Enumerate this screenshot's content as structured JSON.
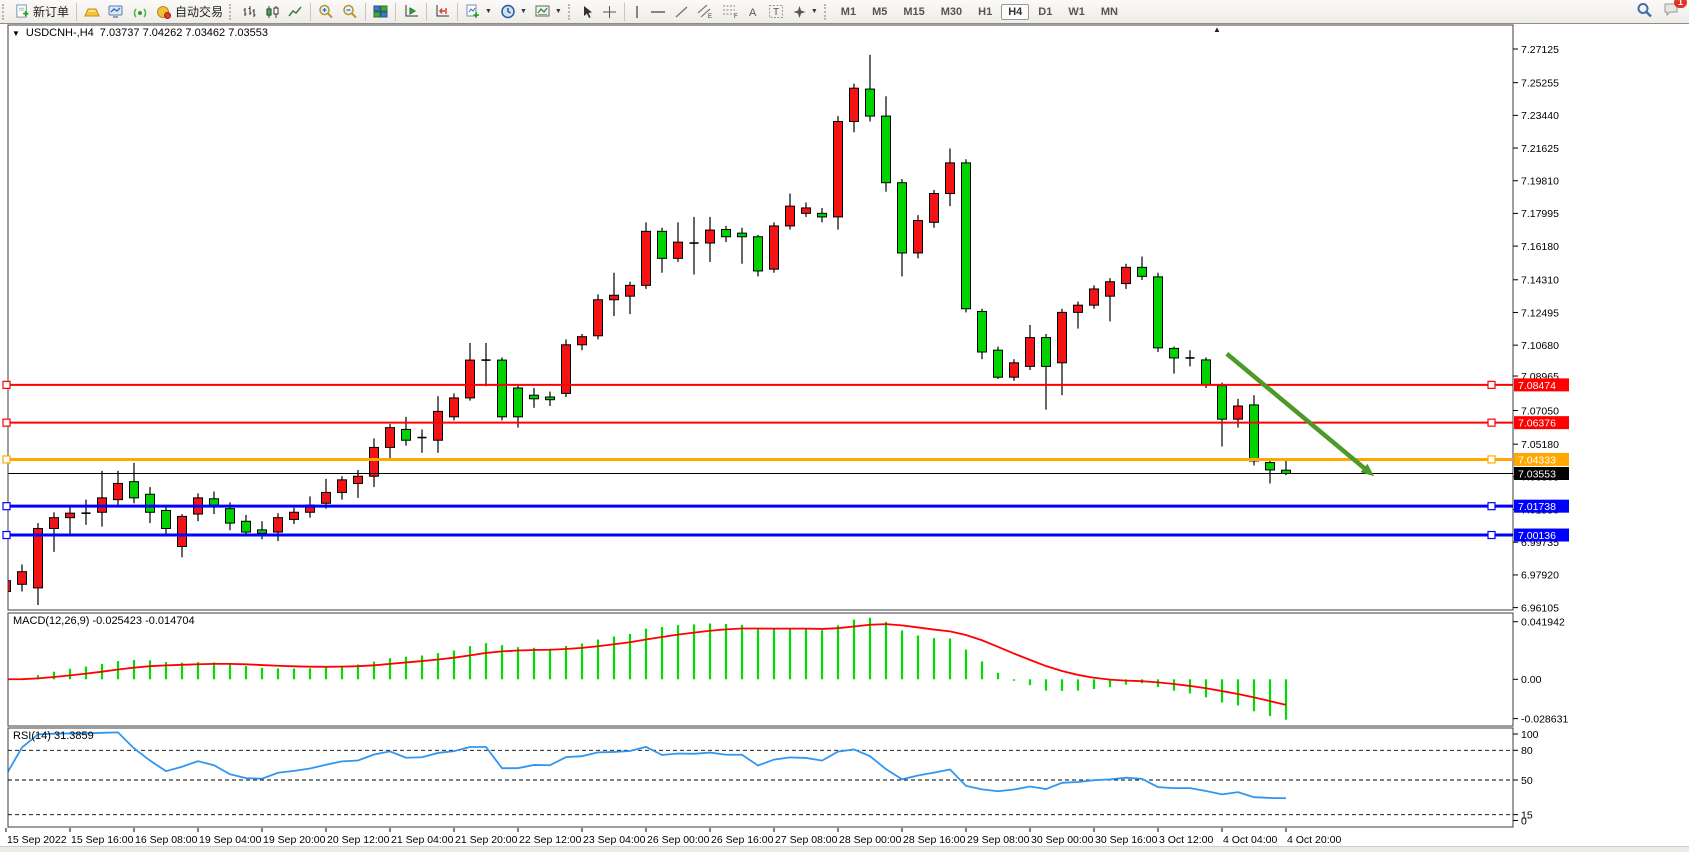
{
  "window": {
    "notification_count": "1"
  },
  "toolbar": {
    "new_order_label": "新订单",
    "autotrade_label": "自动交易",
    "timeframes": [
      "M1",
      "M5",
      "M15",
      "M30",
      "H1",
      "H4",
      "D1",
      "W1",
      "MN"
    ],
    "active_timeframe": "H4"
  },
  "chart_title": {
    "symbol": "USDCNH-,H4",
    "ohlc": "7.03737 7.04262 7.03462 7.03553"
  },
  "indicators": {
    "macd": {
      "label": "MACD(12,26,9)",
      "values": "-0.025423 -0.014704",
      "axis_ticks": [
        {
          "value": 0.041942,
          "label": "0.041942"
        },
        {
          "value": 0,
          "label": "0.00"
        },
        {
          "value": -0.028631,
          "label": "-0.028631"
        }
      ]
    },
    "rsi": {
      "label": "RSI(14)",
      "value": "31.3859",
      "axis_ticks": [
        "100",
        "80",
        "50",
        "15",
        "0"
      ],
      "guides": [
        80,
        50,
        15
      ]
    }
  },
  "chart_data": {
    "type": "candlestick",
    "symbol": "USDCNH-",
    "timeframe": "H4",
    "bull_color": "#f21414",
    "bear_color": "#00d300",
    "ylim": [
      6.96105,
      7.27125
    ],
    "price_axis_ticks": [
      "7.27125",
      "7.25255",
      "7.23440",
      "7.21625",
      "7.19810",
      "7.17995",
      "7.16180",
      "7.14310",
      "7.12495",
      "7.10680",
      "7.08965",
      "7.07050",
      "7.05180",
      "7.03365",
      "7.01550",
      "6.99735",
      "6.97920",
      "6.96105"
    ],
    "time_labels": [
      "15 Sep 2022",
      "15 Sep 16:00",
      "16 Sep 08:00",
      "19 Sep 04:00",
      "19 Sep 20:00",
      "20 Sep 12:00",
      "21 Sep 04:00",
      "21 Sep 20:00",
      "22 Sep 12:00",
      "23 Sep 04:00",
      "26 Sep 00:00",
      "26 Sep 16:00",
      "27 Sep 08:00",
      "28 Sep 00:00",
      "28 Sep 16:00",
      "29 Sep 08:00",
      "30 Sep 00:00",
      "30 Sep 16:00",
      "3 Oct 12:00",
      "4 Oct 04:00",
      "4 Oct 20:00"
    ],
    "candles_per_label": 4,
    "ohlc": [
      [
        6.97,
        6.979,
        6.9655,
        6.976
      ],
      [
        6.974,
        6.985,
        6.97,
        6.981
      ],
      [
        6.972,
        7.008,
        6.9625,
        7.005
      ],
      [
        7.005,
        7.014,
        6.992,
        7.011
      ],
      [
        7.011,
        7.018,
        7.001,
        7.0135
      ],
      [
        7.0135,
        7.021,
        7.007,
        7.0135
      ],
      [
        7.014,
        7.037,
        7.006,
        7.022
      ],
      [
        7.021,
        7.037,
        7.017,
        7.03
      ],
      [
        7.031,
        7.0414,
        7.019,
        7.022
      ],
      [
        7.024,
        7.028,
        7.008,
        7.014
      ],
      [
        7.015,
        7.018,
        7.0005,
        7.005
      ],
      [
        6.995,
        7.013,
        6.989,
        7.0117
      ],
      [
        7.013,
        7.0245,
        7.009,
        7.022
      ],
      [
        7.0215,
        7.0255,
        7.013,
        7.018
      ],
      [
        7.016,
        7.0195,
        7.004,
        7.008
      ],
      [
        7.009,
        7.0125,
        7.0005,
        7.003
      ],
      [
        7.0042,
        7.009,
        6.999,
        7.0023
      ],
      [
        7.003,
        7.0135,
        6.998,
        7.011
      ],
      [
        7.01,
        7.0165,
        7.0075,
        7.014
      ],
      [
        7.014,
        7.0228,
        7.011,
        7.018
      ],
      [
        7.019,
        7.0325,
        7.016,
        7.025
      ],
      [
        7.025,
        7.034,
        7.021,
        7.032
      ],
      [
        7.03,
        7.0375,
        7.022,
        7.034
      ],
      [
        7.034,
        7.055,
        7.028,
        7.05
      ],
      [
        7.05,
        7.063,
        7.044,
        7.061
      ],
      [
        7.06,
        7.067,
        7.051,
        7.054
      ],
      [
        7.056,
        7.06,
        7.047,
        7.0555
      ],
      [
        7.054,
        7.0785,
        7.047,
        7.07
      ],
      [
        7.067,
        7.08,
        7.065,
        7.0775
      ],
      [
        7.0775,
        7.108,
        7.076,
        7.0985
      ],
      [
        7.099,
        7.108,
        7.084,
        7.0985
      ],
      [
        7.0985,
        7.1,
        7.065,
        7.067
      ],
      [
        7.083,
        7.085,
        7.061,
        7.067
      ],
      [
        7.079,
        7.083,
        7.072,
        7.077
      ],
      [
        7.078,
        7.081,
        7.073,
        7.0765
      ],
      [
        7.08,
        7.11,
        7.078,
        7.107
      ],
      [
        7.107,
        7.113,
        7.104,
        7.1115
      ],
      [
        7.112,
        7.135,
        7.11,
        7.132
      ],
      [
        7.132,
        7.147,
        7.123,
        7.1345
      ],
      [
        7.134,
        7.142,
        7.124,
        7.14
      ],
      [
        7.14,
        7.175,
        7.138,
        7.17
      ],
      [
        7.17,
        7.172,
        7.147,
        7.155
      ],
      [
        7.155,
        7.175,
        7.153,
        7.164
      ],
      [
        7.164,
        7.178,
        7.146,
        7.1635
      ],
      [
        7.1635,
        7.178,
        7.153,
        7.1707
      ],
      [
        7.171,
        7.173,
        7.164,
        7.167
      ],
      [
        7.169,
        7.172,
        7.152,
        7.167
      ],
      [
        7.167,
        7.168,
        7.145,
        7.148
      ],
      [
        7.149,
        7.175,
        7.147,
        7.173
      ],
      [
        7.173,
        7.191,
        7.171,
        7.184
      ],
      [
        7.18,
        7.186,
        7.178,
        7.183
      ],
      [
        7.18,
        7.183,
        7.175,
        7.178
      ],
      [
        7.178,
        7.234,
        7.171,
        7.231
      ],
      [
        7.231,
        7.252,
        7.225,
        7.2495
      ],
      [
        7.249,
        7.268,
        7.231,
        7.234
      ],
      [
        7.234,
        7.245,
        7.192,
        7.197
      ],
      [
        7.197,
        7.199,
        7.145,
        7.158
      ],
      [
        7.158,
        7.179,
        7.155,
        7.176
      ],
      [
        7.175,
        7.193,
        7.172,
        7.191
      ],
      [
        7.191,
        7.216,
        7.184,
        7.208
      ],
      [
        7.208,
        7.21,
        7.125,
        7.127
      ],
      [
        7.1255,
        7.127,
        7.099,
        7.103
      ],
      [
        7.104,
        7.106,
        7.088,
        7.089
      ],
      [
        7.089,
        7.099,
        7.087,
        7.097
      ],
      [
        7.095,
        7.118,
        7.093,
        7.111
      ],
      [
        7.111,
        7.113,
        7.071,
        7.095
      ],
      [
        7.097,
        7.127,
        7.079,
        7.125
      ],
      [
        7.125,
        7.131,
        7.116,
        7.129
      ],
      [
        7.129,
        7.14,
        7.127,
        7.138
      ],
      [
        7.134,
        7.144,
        7.12,
        7.142
      ],
      [
        7.141,
        7.152,
        7.138,
        7.15
      ],
      [
        7.15,
        7.156,
        7.143,
        7.145
      ],
      [
        7.1447,
        7.147,
        7.103,
        7.1053
      ],
      [
        7.105,
        7.106,
        7.091,
        7.0997
      ],
      [
        7.1,
        7.104,
        7.095,
        7.0997
      ],
      [
        7.0986,
        7.1,
        7.083,
        7.0847
      ],
      [
        7.0843,
        7.086,
        7.0505,
        7.0657
      ],
      [
        7.0657,
        7.077,
        7.061,
        7.073
      ],
      [
        7.0736,
        7.079,
        7.04,
        7.0425
      ],
      [
        7.0416,
        7.043,
        7.03,
        7.0375
      ],
      [
        7.03737,
        7.04262,
        7.03462,
        7.03553
      ]
    ],
    "levels": [
      {
        "price": 7.08474,
        "label": "7.08474",
        "color": "#ff0000",
        "width": 2,
        "handles": true
      },
      {
        "price": 7.06376,
        "label": "7.06376",
        "color": "#ff0000",
        "width": 2,
        "handles": true
      },
      {
        "price": 7.04333,
        "label": "7.04333",
        "color": "#ffa800",
        "width": 3,
        "handles": true
      },
      {
        "price": 7.03553,
        "label": "7.03553",
        "color": "#000000",
        "width": 1,
        "handles": false,
        "current": true
      },
      {
        "price": 7.01738,
        "label": "7.01738",
        "color": "#0000ff",
        "width": 3,
        "handles": true
      },
      {
        "price": 7.00136,
        "label": "7.00136",
        "color": "#0000ff",
        "width": 3,
        "handles": true
      }
    ],
    "arrow": {
      "from": {
        "index": 76.3,
        "price": 7.102
      },
      "to": {
        "index": 85.5,
        "price": 7.034
      },
      "color": "#4e9a28"
    }
  }
}
